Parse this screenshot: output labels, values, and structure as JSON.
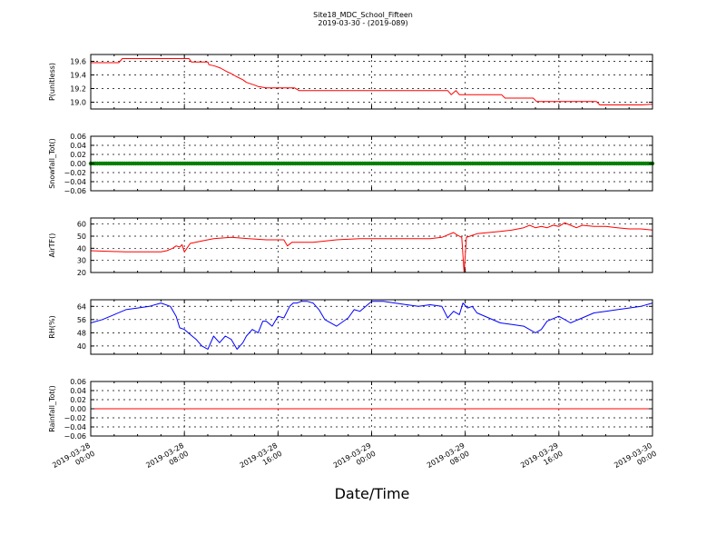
{
  "figure": {
    "title": "Site18_MDC_School_Fifteen",
    "subtitle": "2019-03-30 - (2019-089)",
    "xlabel": "Date/Time",
    "x_ticks": [
      {
        "value": 0,
        "lines": [
          "2019-03-28",
          "00:00"
        ]
      },
      {
        "value": 8,
        "lines": [
          "2019-03-28",
          "08:00"
        ]
      },
      {
        "value": 16,
        "lines": [
          "2019-03-28",
          "16:00"
        ]
      },
      {
        "value": 24,
        "lines": [
          "2019-03-29",
          "00:00"
        ]
      },
      {
        "value": 32,
        "lines": [
          "2019-03-29",
          "08:00"
        ]
      },
      {
        "value": 40,
        "lines": [
          "2019-03-29",
          "16:00"
        ]
      },
      {
        "value": 48,
        "lines": [
          "2019-03-30",
          "00:00"
        ]
      }
    ]
  },
  "chart_data": [
    {
      "type": "line",
      "ylabel": "P(unitless)",
      "color": "#ff0000",
      "ylim": [
        18.9,
        19.7
      ],
      "yticks": [
        "19.0",
        "19.2",
        "19.4",
        "19.6"
      ],
      "ytick_values": [
        19.0,
        19.2,
        19.4,
        19.6
      ],
      "x": [
        0,
        2.4,
        2.7,
        8.4,
        8.6,
        10,
        10.1,
        10.6,
        11.1,
        11.6,
        12,
        12.4,
        13,
        13.3,
        14,
        14.3,
        15,
        17.4,
        17.8,
        30.5,
        30.8,
        31.2,
        31.5,
        35.1,
        35.4,
        37.8,
        38.1,
        43.2,
        43.5,
        47,
        48
      ],
      "y": [
        19.58,
        19.58,
        19.64,
        19.64,
        19.59,
        19.59,
        19.55,
        19.53,
        19.5,
        19.45,
        19.42,
        19.38,
        19.33,
        19.29,
        19.25,
        19.23,
        19.21,
        19.21,
        19.17,
        19.17,
        19.11,
        19.17,
        19.11,
        19.11,
        19.06,
        19.06,
        19.01,
        19.01,
        18.96,
        18.96,
        18.97
      ]
    },
    {
      "type": "scatter",
      "ylabel": "Snowfall_Tot()",
      "color": "#008000",
      "ylim": [
        -0.06,
        0.06
      ],
      "yticks": [
        "0.06",
        "0.04",
        "0.02",
        "0.00",
        "−0.02",
        "−0.04",
        "−0.06"
      ],
      "ytick_values": [
        0.06,
        0.04,
        0.02,
        0.0,
        -0.02,
        -0.04,
        -0.06
      ],
      "x_range": [
        0,
        48
      ],
      "constant": 0.0
    },
    {
      "type": "line",
      "ylabel": "AirTF()",
      "color": "#ff0000",
      "ylim": [
        20,
        65
      ],
      "yticks": [
        "60",
        "50",
        "40",
        "30",
        "20"
      ],
      "ytick_values": [
        60,
        50,
        40,
        30,
        20
      ],
      "x": [
        0,
        3,
        6,
        6.5,
        7,
        7.3,
        7.6,
        7.8,
        8,
        8.5,
        9.5,
        10.5,
        12,
        13.5,
        15,
        16.5,
        16.8,
        17.2,
        19,
        21,
        23,
        25,
        27,
        29,
        30,
        31,
        31.3,
        31.7,
        31.9,
        32.1,
        32.4,
        33,
        34,
        35,
        36,
        37,
        37.5,
        38,
        38.5,
        39,
        39.5,
        40,
        40.5,
        41,
        41.5,
        42,
        43,
        44,
        45,
        46,
        47,
        48
      ],
      "y": [
        38,
        37,
        37,
        38,
        40,
        42,
        41,
        43,
        37,
        44,
        46,
        48,
        49,
        48,
        47,
        47,
        42,
        45,
        45,
        47,
        48,
        48,
        48,
        48,
        49,
        53,
        51,
        49,
        20,
        49,
        50,
        52,
        53,
        54,
        55,
        57,
        59,
        57,
        58,
        57,
        59,
        58,
        61,
        59,
        57,
        59,
        58,
        58,
        57,
        56,
        56,
        55
      ]
    },
    {
      "type": "line",
      "ylabel": "RH(%)",
      "color": "#0000ff",
      "ylim": [
        35,
        68
      ],
      "yticks": [
        "64",
        "56",
        "48",
        "40"
      ],
      "ytick_values": [
        64,
        56,
        48,
        40
      ],
      "x": [
        0,
        1,
        2,
        3,
        4,
        5,
        6,
        6.8,
        7.3,
        7.6,
        8,
        8.5,
        9,
        9.5,
        10,
        10.5,
        11,
        11.5,
        12,
        12.5,
        13,
        13.3,
        13.8,
        14.3,
        14.7,
        15,
        15.5,
        16,
        16.5,
        17,
        17.3,
        17.6,
        18,
        18.5,
        19,
        19.5,
        20,
        21,
        22,
        22.5,
        23,
        24,
        25,
        26,
        27,
        28,
        29,
        30,
        30.5,
        31,
        31.5,
        31.8,
        32.2,
        32.6,
        33,
        34,
        35,
        36,
        37,
        38,
        38.5,
        39,
        40,
        40.5,
        41,
        42,
        43,
        44,
        45,
        46,
        47,
        48
      ],
      "y": [
        54,
        56,
        59,
        62,
        63,
        64,
        66,
        64,
        58,
        51,
        50,
        47,
        44,
        40,
        38,
        46,
        42,
        46,
        44,
        38,
        42,
        46,
        50,
        48,
        55,
        55,
        52,
        58,
        57,
        64,
        66,
        66,
        67,
        67,
        66,
        62,
        56,
        52,
        57,
        62,
        61,
        67,
        67,
        66,
        65,
        64,
        65,
        64,
        57,
        61,
        59,
        66,
        63,
        64,
        60,
        57,
        54,
        53,
        52,
        48,
        50,
        55,
        58,
        56,
        54,
        57,
        60,
        61,
        62,
        63,
        64,
        66
      ]
    },
    {
      "type": "line",
      "ylabel": "Rainfall_Tot()",
      "color": "#ff0000",
      "ylim": [
        -0.06,
        0.06
      ],
      "yticks": [
        "0.06",
        "0.04",
        "0.02",
        "0.00",
        "−0.02",
        "−0.04",
        "−0.06"
      ],
      "ytick_values": [
        0.06,
        0.04,
        0.02,
        0.0,
        -0.02,
        -0.04,
        -0.06
      ],
      "x": [
        0,
        48
      ],
      "y": [
        0.0,
        0.0
      ]
    }
  ]
}
